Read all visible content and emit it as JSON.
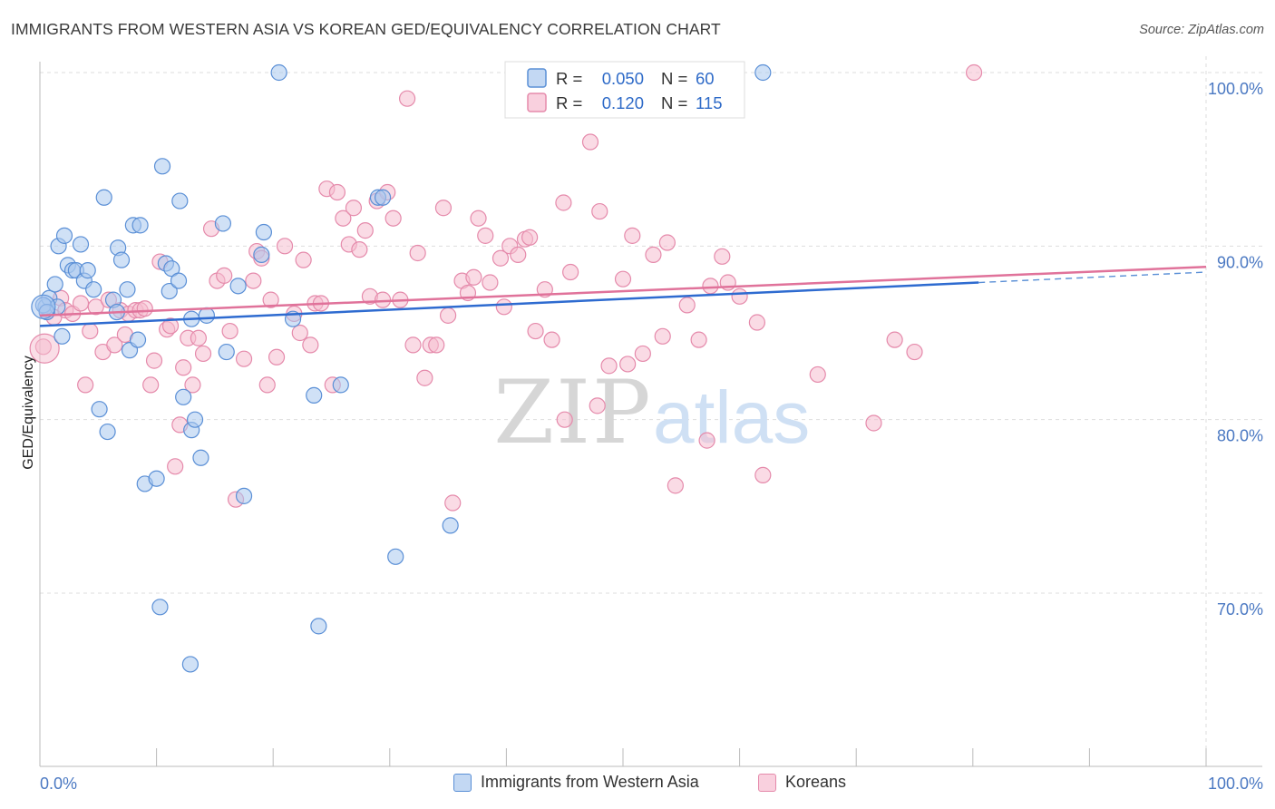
{
  "title": "IMMIGRANTS FROM WESTERN ASIA VS KOREAN GED/EQUIVALENCY CORRELATION CHART",
  "source": "Source: ZipAtlas.com",
  "watermark": {
    "zip": "ZIP",
    "atlas": "atlas"
  },
  "colors": {
    "blue_fill": "#a9c8ef",
    "blue_stroke": "#5a8fd6",
    "blue_line": "#2e6bd0",
    "pink_fill": "#f6bdd0",
    "pink_stroke": "#e58aab",
    "pink_line": "#e0729a",
    "grid": "#dddddd",
    "axis_text": "#4a78c2"
  },
  "legend": {
    "r_label": "R =",
    "n_label": "N =",
    "rows": [
      {
        "series": "blue",
        "r": "0.050",
        "n": "60"
      },
      {
        "series": "pink",
        "r": "0.120",
        "n": "115"
      }
    ]
  },
  "bottom_legend": [
    {
      "series": "blue",
      "label": "Immigrants from Western Asia"
    },
    {
      "series": "pink",
      "label": "Koreans"
    }
  ],
  "chart_data": {
    "type": "scatter",
    "title": "IMMIGRANTS FROM WESTERN ASIA VS KOREAN GED/EQUIVALENCY CORRELATION CHART",
    "xlabel": "",
    "ylabel": "GED/Equivalency",
    "xlim": [
      0,
      100
    ],
    "ylim": [
      60.5,
      101.5
    ],
    "x_tick_labels": [
      "0.0%",
      "100.0%"
    ],
    "y_ticks": [
      70,
      80,
      90,
      100
    ],
    "y_tick_labels": [
      "70.0%",
      "80.0%",
      "90.0%",
      "100.0%"
    ],
    "grid": true,
    "legend_position": "top-center",
    "series": [
      {
        "name": "Immigrants from Western Asia",
        "color": "blue",
        "r": 0.05,
        "n": 60,
        "trend": {
          "x": [
            0,
            80.5
          ],
          "y": [
            85.4,
            87.9
          ],
          "dashed_to": [
            100,
            88.5
          ]
        },
        "points": [
          [
            0.5,
            86.5
          ],
          [
            0.8,
            87.0
          ],
          [
            1.3,
            87.8
          ],
          [
            1.5,
            86.5
          ],
          [
            1.6,
            90.0
          ],
          [
            1.9,
            84.8
          ],
          [
            2.1,
            90.6
          ],
          [
            2.4,
            88.9
          ],
          [
            2.8,
            88.6
          ],
          [
            3.1,
            88.6
          ],
          [
            3.5,
            90.1
          ],
          [
            3.8,
            88.0
          ],
          [
            4.1,
            88.6
          ],
          [
            4.6,
            87.5
          ],
          [
            5.1,
            80.6
          ],
          [
            5.5,
            92.8
          ],
          [
            5.8,
            79.3
          ],
          [
            6.3,
            86.9
          ],
          [
            6.6,
            86.2
          ],
          [
            6.7,
            89.9
          ],
          [
            7.0,
            89.2
          ],
          [
            7.5,
            87.5
          ],
          [
            7.7,
            84.0
          ],
          [
            8.0,
            91.2
          ],
          [
            8.4,
            84.6
          ],
          [
            8.6,
            91.2
          ],
          [
            9.0,
            76.3
          ],
          [
            10.0,
            76.6
          ],
          [
            10.3,
            69.2
          ],
          [
            10.5,
            94.6
          ],
          [
            10.8,
            89.0
          ],
          [
            11.1,
            87.4
          ],
          [
            11.3,
            88.7
          ],
          [
            11.9,
            88.0
          ],
          [
            12.0,
            92.6
          ],
          [
            12.3,
            81.3
          ],
          [
            12.9,
            65.9
          ],
          [
            13.0,
            79.4
          ],
          [
            13.3,
            80.0
          ],
          [
            13.8,
            77.8
          ],
          [
            14.3,
            86.0
          ],
          [
            15.7,
            91.3
          ],
          [
            16.0,
            83.9
          ],
          [
            17.0,
            87.7
          ],
          [
            17.5,
            75.6
          ],
          [
            19.0,
            89.5
          ],
          [
            19.2,
            90.8
          ],
          [
            20.5,
            100.0
          ],
          [
            21.7,
            85.8
          ],
          [
            23.5,
            81.4
          ],
          [
            23.9,
            68.1
          ],
          [
            25.8,
            82.0
          ],
          [
            29.0,
            92.8
          ],
          [
            29.4,
            92.8
          ],
          [
            30.5,
            72.1
          ],
          [
            35.2,
            73.9
          ],
          [
            62.0,
            100.0
          ],
          [
            0.3,
            86.6
          ],
          [
            0.6,
            86.2
          ],
          [
            13.0,
            85.8
          ]
        ]
      },
      {
        "name": "Koreans",
        "color": "pink",
        "r": 0.12,
        "n": 115,
        "trend": {
          "x": [
            0,
            100
          ],
          "y": [
            86.0,
            88.8
          ]
        },
        "points": [
          [
            0.3,
            84.2
          ],
          [
            0.6,
            86.2
          ],
          [
            1.2,
            85.9
          ],
          [
            1.8,
            87.0
          ],
          [
            2.2,
            86.3
          ],
          [
            2.8,
            86.1
          ],
          [
            3.5,
            86.7
          ],
          [
            3.9,
            82.0
          ],
          [
            4.3,
            85.1
          ],
          [
            4.8,
            86.5
          ],
          [
            5.4,
            83.9
          ],
          [
            5.9,
            86.9
          ],
          [
            6.4,
            84.3
          ],
          [
            6.9,
            86.3
          ],
          [
            7.3,
            84.9
          ],
          [
            7.6,
            86.1
          ],
          [
            8.2,
            86.3
          ],
          [
            8.6,
            86.3
          ],
          [
            9.0,
            86.4
          ],
          [
            9.5,
            82.0
          ],
          [
            9.8,
            83.4
          ],
          [
            10.3,
            89.1
          ],
          [
            10.9,
            85.2
          ],
          [
            11.2,
            85.4
          ],
          [
            11.6,
            77.3
          ],
          [
            12.0,
            79.7
          ],
          [
            12.3,
            83.0
          ],
          [
            12.7,
            84.7
          ],
          [
            13.1,
            82.0
          ],
          [
            13.6,
            84.7
          ],
          [
            14.0,
            83.8
          ],
          [
            14.7,
            91.0
          ],
          [
            15.2,
            88.0
          ],
          [
            15.8,
            88.3
          ],
          [
            16.3,
            85.1
          ],
          [
            16.8,
            75.4
          ],
          [
            17.5,
            83.5
          ],
          [
            18.3,
            88.0
          ],
          [
            18.6,
            89.7
          ],
          [
            19.0,
            89.3
          ],
          [
            19.5,
            82.0
          ],
          [
            19.8,
            86.9
          ],
          [
            20.3,
            83.6
          ],
          [
            21.0,
            90.0
          ],
          [
            21.8,
            86.1
          ],
          [
            22.3,
            85.0
          ],
          [
            22.6,
            89.2
          ],
          [
            23.2,
            84.3
          ],
          [
            23.6,
            86.7
          ],
          [
            24.1,
            86.7
          ],
          [
            24.6,
            93.3
          ],
          [
            25.1,
            82.0
          ],
          [
            25.5,
            93.1
          ],
          [
            26.0,
            91.6
          ],
          [
            26.5,
            90.1
          ],
          [
            26.9,
            92.2
          ],
          [
            27.4,
            89.8
          ],
          [
            27.9,
            90.9
          ],
          [
            28.3,
            87.1
          ],
          [
            28.9,
            92.6
          ],
          [
            29.4,
            86.9
          ],
          [
            29.8,
            93.1
          ],
          [
            30.3,
            91.6
          ],
          [
            30.9,
            86.9
          ],
          [
            31.5,
            98.5
          ],
          [
            32.0,
            84.3
          ],
          [
            32.4,
            89.6
          ],
          [
            33.0,
            82.4
          ],
          [
            33.5,
            84.3
          ],
          [
            34.0,
            84.3
          ],
          [
            34.6,
            92.2
          ],
          [
            35.0,
            86.0
          ],
          [
            35.4,
            75.2
          ],
          [
            36.2,
            88.0
          ],
          [
            36.7,
            87.3
          ],
          [
            37.2,
            88.2
          ],
          [
            37.6,
            91.6
          ],
          [
            38.2,
            90.6
          ],
          [
            38.6,
            87.9
          ],
          [
            39.5,
            89.3
          ],
          [
            39.8,
            86.5
          ],
          [
            40.3,
            90.0
          ],
          [
            41.0,
            89.5
          ],
          [
            41.6,
            90.4
          ],
          [
            42.0,
            90.5
          ],
          [
            42.5,
            85.1
          ],
          [
            43.3,
            87.5
          ],
          [
            43.9,
            84.6
          ],
          [
            44.9,
            92.5
          ],
          [
            45.5,
            88.5
          ],
          [
            47.2,
            96.0
          ],
          [
            47.8,
            80.8
          ],
          [
            48.0,
            92.0
          ],
          [
            48.8,
            83.1
          ],
          [
            50.0,
            88.1
          ],
          [
            50.4,
            83.2
          ],
          [
            50.8,
            90.6
          ],
          [
            51.7,
            83.8
          ],
          [
            52.6,
            89.5
          ],
          [
            53.4,
            84.8
          ],
          [
            53.8,
            90.2
          ],
          [
            54.5,
            76.2
          ],
          [
            55.5,
            86.6
          ],
          [
            56.5,
            84.6
          ],
          [
            57.2,
            78.8
          ],
          [
            58.5,
            89.4
          ],
          [
            59.0,
            87.9
          ],
          [
            61.5,
            85.6
          ],
          [
            62.0,
            76.8
          ],
          [
            66.7,
            82.6
          ],
          [
            71.5,
            79.8
          ],
          [
            73.3,
            84.6
          ],
          [
            75.0,
            83.9
          ],
          [
            80.1,
            100.0
          ],
          [
            45.0,
            80.0
          ],
          [
            57.5,
            87.7
          ],
          [
            60.0,
            87.1
          ]
        ]
      }
    ]
  }
}
